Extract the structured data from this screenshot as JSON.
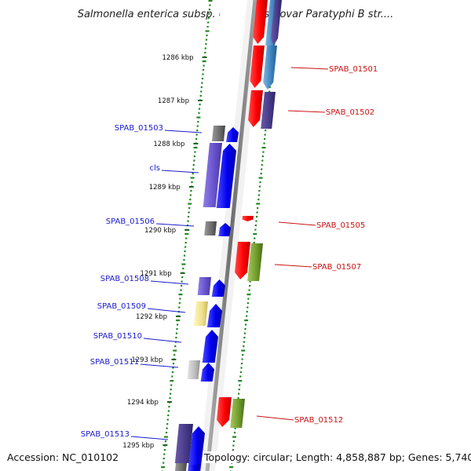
{
  "title": "Salmonella enterica subsp. enterica serovar Paratyphi B str....",
  "ruler": [
    "1286 kbp",
    "1287 kbp",
    "1288 kbp",
    "1289 kbp",
    "1290 kbp",
    "1291 kbp",
    "1292 kbp",
    "1293 kbp",
    "1294 kbp",
    "1295 kbp"
  ],
  "left_labels": [
    "SPAB_01503",
    "cls",
    "SPAB_01506",
    "SPAB_01508",
    "SPAB_01509",
    "SPAB_01510",
    "SPAB_01511",
    "SPAB_01513"
  ],
  "right_labels": [
    "SPAB_01501",
    "SPAB_01502",
    "SPAB_01505",
    "SPAB_01507",
    "SPAB_01512"
  ],
  "footer": {
    "accession": "Accession: NC_010102",
    "summary": "Topology: circular; Length: 4,858,887 bp; Genes: 5,740"
  },
  "colors": {
    "forward_cds": "#ff0000",
    "reverse_cds": "#0000ee",
    "left_label": "#1a1acc",
    "right_label": "#cc1111",
    "gc_dots": "#228822",
    "backbone": "#777777"
  }
}
